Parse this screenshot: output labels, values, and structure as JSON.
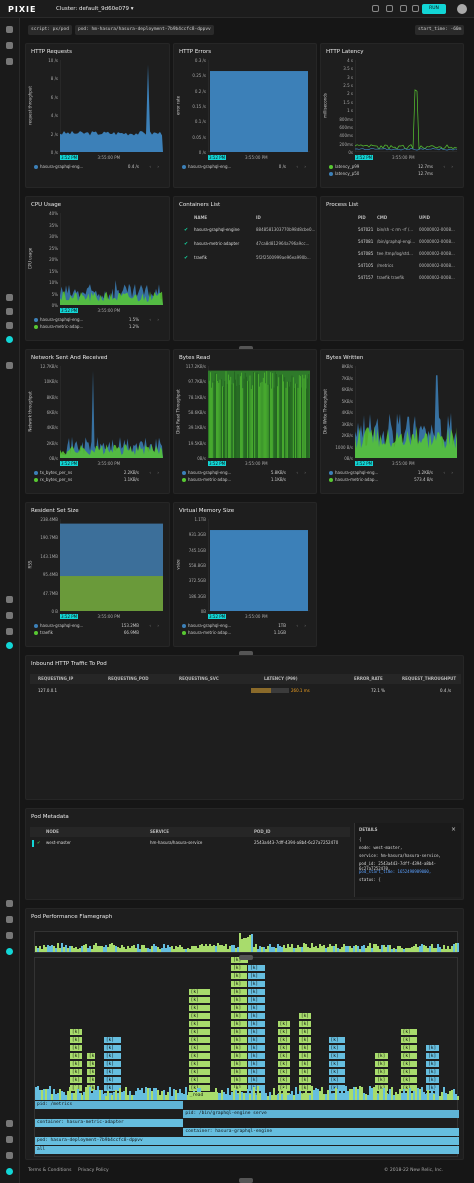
{
  "topbar": {
    "logo": "PIXIE",
    "cluster_label": "Cluster: default_9d60e079 ▾",
    "run_label": "RUN"
  },
  "script": {
    "script_label": "script: px/pod",
    "pod_label": "pod: hm-hasura/hasura-deployment-7b9b4ccfc8-dppvv",
    "start_time_label": "start_time: -60m"
  },
  "colors": {
    "accent": "#12d6d6",
    "blue": "#3c80b8",
    "green": "#58c832",
    "teal_table": "#66bedf"
  },
  "charts": {
    "http_requests": {
      "title": "HTTP Requests",
      "ylabel": "request throughput",
      "yticks": [
        "10 /s",
        "8 /s",
        "6 /s",
        "4 /s",
        "2 /s",
        "0 /s"
      ],
      "xtick": "3:55:00 PM",
      "cursor": "3:52 PM",
      "legend": [
        {
          "name": "hasura-graphql-eng...",
          "value": "0.4 /s",
          "color": "#3c80b8"
        }
      ]
    },
    "http_errors": {
      "title": "HTTP Errors",
      "ylabel": "error rate",
      "yticks": [
        "0.3 /s",
        "0.25 /s",
        "0.2 /s",
        "0.15 /s",
        "0.1 /s",
        "0.05 /s",
        "0 /s"
      ],
      "xtick": "3:55:00 PM",
      "cursor": "3:52 PM",
      "legend": [
        {
          "name": "hasura-graphql-eng...",
          "value": "0 /s",
          "color": "#3c80b8"
        }
      ]
    },
    "http_latency": {
      "title": "HTTP Latency",
      "ylabel": "milliseconds",
      "yticks": [
        "4 s",
        "3.5 s",
        "3 s",
        "2.5 s",
        "2 s",
        "1.5 s",
        "1 s",
        "800ms",
        "600ms",
        "400ms",
        "200ms",
        "0s"
      ],
      "xtick": "3:55:00 PM",
      "cursor": "3:52 PM",
      "legend": [
        {
          "name": "latency_p99",
          "value": "12.7ms",
          "color": "#58c832"
        },
        {
          "name": "latency_p50",
          "value": "12.7ms",
          "color": "#3c80b8"
        }
      ]
    },
    "cpu_usage": {
      "title": "CPU Usage",
      "ylabel": "CPU usage",
      "yticks": [
        "40%",
        "35%",
        "30%",
        "25%",
        "20%",
        "15%",
        "10%",
        "5%",
        "0%"
      ],
      "xtick": "3:55:00 PM",
      "cursor": "3:52 PM",
      "legend": [
        {
          "name": "hasura-graphql-eng...",
          "value": "1.5%",
          "color": "#3c80b8"
        },
        {
          "name": "hasura-metric-adap...",
          "value": "1.2%",
          "color": "#58c832"
        }
      ]
    },
    "network": {
      "title": "Network Sent And Received",
      "ylabel": "Network throughput",
      "yticks": [
        "12.7KB/s",
        "10KB/s",
        "8KB/s",
        "6KB/s",
        "4KB/s",
        "2KB/s",
        "0B/s"
      ],
      "xtick": "3:55:00 PM",
      "cursor": "3:52 PM",
      "legend": [
        {
          "name": "tx_bytes_per_ns",
          "value": "2.2KB/s",
          "color": "#3c80b8"
        },
        {
          "name": "rx_bytes_per_ns",
          "value": "1.1KB/s",
          "color": "#58c832"
        }
      ]
    },
    "bytes_read": {
      "title": "Bytes Read",
      "ylabel": "Disk Read Throughput",
      "yticks": [
        "117.2KB/s",
        "97.7KB/s",
        "78.1KB/s",
        "58.6KB/s",
        "39.1KB/s",
        "19.5KB/s",
        "0B/s"
      ],
      "xtick": "3:55:00 PM",
      "cursor": "3:52 PM",
      "legend": [
        {
          "name": "hasura-graphql-eng...",
          "value": "5.8KB/s",
          "color": "#3c80b8"
        },
        {
          "name": "hasura-metric-adap...",
          "value": "1.1KB/s",
          "color": "#58c832"
        }
      ]
    },
    "bytes_written": {
      "title": "Bytes Written",
      "ylabel": "Disk Write Throughput",
      "yticks": [
        "8KB/s",
        "7KB/s",
        "6KB/s",
        "5KB/s",
        "4KB/s",
        "3KB/s",
        "2KB/s",
        "1000 B/s",
        "0B/s"
      ],
      "xtick": "3:55:00 PM",
      "cursor": "3:52 PM",
      "legend": [
        {
          "name": "hasura-graphql-eng...",
          "value": "1.2KB/s",
          "color": "#3c80b8"
        },
        {
          "name": "hasura-metric-adap...",
          "value": "573.4 B/s",
          "color": "#58c832"
        }
      ]
    },
    "rss": {
      "title": "Resident Set Size",
      "ylabel": "RSS",
      "yticks": [
        "238.4MB",
        "190.7MB",
        "143.1MB",
        "95.4MB",
        "47.7MB",
        "0 B"
      ],
      "xtick": "3:55:00 PM",
      "cursor": "3:52 PM",
      "legend": [
        {
          "name": "hasura-graphql-eng...",
          "value": "153.2MB",
          "color": "#3c80b8"
        },
        {
          "name": "traefik",
          "value": "66.9MB",
          "color": "#58c832"
        }
      ]
    },
    "vsize": {
      "title": "Virtual Memory Size",
      "ylabel": "vsize",
      "yticks": [
        "1.1TB",
        "931.3GB",
        "745.1GB",
        "558.8GB",
        "372.5GB",
        "186.3GB",
        "0B"
      ],
      "xtick": "3:55:00 PM",
      "cursor": "3:52 PM",
      "legend": [
        {
          "name": "hasura-graphql-eng...",
          "value": "1TB",
          "color": "#3c80b8"
        },
        {
          "name": "hasura-metric-adap...",
          "value": "1.1GB",
          "color": "#58c832"
        }
      ]
    }
  },
  "containers": {
    "title": "Containers List",
    "headers": [
      "NAME",
      "ID"
    ],
    "rows": [
      [
        "hasura-graphql-engine",
        "8848581303770b98d8cbe0..."
      ],
      [
        "hasura-metric-adapter",
        "47ca8d812964a796a9cc..."
      ],
      [
        "traefik",
        "5f2f2500999ae96ea990b..."
      ]
    ]
  },
  "processes": {
    "title": "Process List",
    "headers": [
      "PID",
      "CMD",
      "UPID"
    ],
    "rows": [
      [
        "547021",
        "bin/sh -c rm -rf /...",
        "00000002-0008..."
      ],
      [
        "547081",
        "/bin/graphql-engi...",
        "00000002-0008..."
      ],
      [
        "547085",
        "tee /tmp/log/std...",
        "00000002-0008..."
      ],
      [
        "547105",
        "/metrics",
        "00000002-0008..."
      ],
      [
        "547157",
        "traefik traefik",
        "00000002-0008..."
      ]
    ]
  },
  "inbound": {
    "title": "Inbound HTTP Traffic To Pod",
    "headers": [
      "REQUESTING_IP",
      "REQUESTING_POD",
      "REQUESTING_SVC",
      "LATENCY (P99)",
      "ERROR_RATE",
      "REQUEST_THROUGHPUT"
    ],
    "row": [
      "127.0.0.1",
      "",
      "",
      "260.1 ms",
      "72.1 %",
      "0.4 /s"
    ]
  },
  "metadata": {
    "title": "Pod Metadata",
    "headers": [
      "NODE",
      "SERVICE",
      "POD_ID"
    ],
    "row": [
      "west-master",
      "hm-hasura/hasura-service",
      "2543a443-7dff-4394-a8b4-6c27a7252470"
    ],
    "details_title": "DETAILS",
    "details": [
      "{",
      "  node: west-master,",
      "  service: hm-hasura/hasura-service,",
      "  pod_id: 2543a443-7dff-4394-a8b4-6c27a7252470,",
      "  pod_start_time: 1652498989000,",
      "  status: {"
    ]
  },
  "flamegraph": {
    "title": "Pod Performance Flamegraph",
    "rows": [
      "pid: /metrics",
      "pid: /bin/graphql-engine serve",
      "container: hasura-metric-adapter",
      "container: hasura-graphql-engine",
      "pod: hasura-deployment-7b9b4ccfc8-dppvv",
      "all"
    ],
    "read_label": "_read"
  },
  "footer": {
    "terms": "Terms & Conditions",
    "privacy": "Privacy Policy",
    "copyright": "© 2018-22 New Relic, Inc."
  }
}
